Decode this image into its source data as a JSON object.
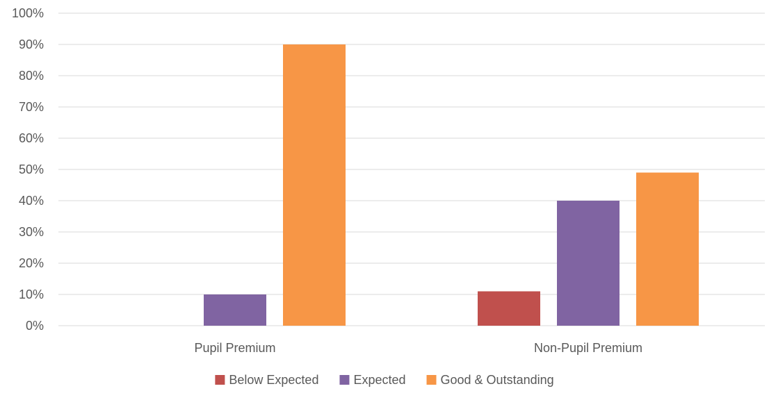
{
  "chart_data": {
    "type": "bar",
    "title": "",
    "xlabel": "",
    "ylabel": "",
    "categories": [
      "Pupil Premium",
      "Non-Pupil Premium"
    ],
    "series": [
      {
        "name": "Below Expected",
        "color": "#c0504d",
        "values": [
          0,
          11
        ]
      },
      {
        "name": "Expected",
        "color": "#8064a2",
        "values": [
          10,
          40
        ]
      },
      {
        "name": "Good & Outstanding",
        "color": "#f79646",
        "values": [
          90,
          49
        ]
      }
    ],
    "ylim": [
      0,
      100
    ],
    "y_ticks": [
      "0%",
      "10%",
      "20%",
      "30%",
      "40%",
      "50%",
      "60%",
      "70%",
      "80%",
      "90%",
      "100%"
    ],
    "grid": true,
    "legend_position": "bottom"
  }
}
